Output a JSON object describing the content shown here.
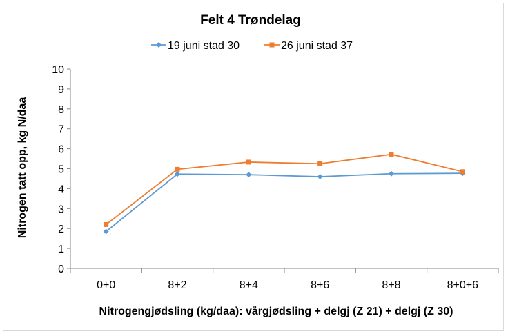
{
  "chart_data": {
    "type": "line",
    "title": "Felt 4 Trøndelag",
    "xlabel": "Nitrogengjødsling (kg/daa): vårgjødsling + delgj (Z 21) + delgj (Z 30)",
    "ylabel": "Nitrogen tatt opp, kg N/daa",
    "categories": [
      "0+0",
      "8+2",
      "8+4",
      "8+6",
      "8+8",
      "8+0+6"
    ],
    "ylim": [
      0,
      10
    ],
    "yticks": [
      "0",
      "1",
      "2",
      "3",
      "4",
      "5",
      "6",
      "7",
      "8",
      "9",
      "10"
    ],
    "grid": false,
    "legend_position": "top",
    "series": [
      {
        "name": "19 juni  stad 30",
        "color": "#5b9bd5",
        "marker": "diamond",
        "values": [
          1.85,
          4.73,
          4.7,
          4.6,
          4.75,
          4.77
        ]
      },
      {
        "name": "26 juni stad 37",
        "color": "#ed7d31",
        "marker": "square",
        "values": [
          2.2,
          4.97,
          5.33,
          5.25,
          5.72,
          4.85
        ]
      }
    ]
  }
}
